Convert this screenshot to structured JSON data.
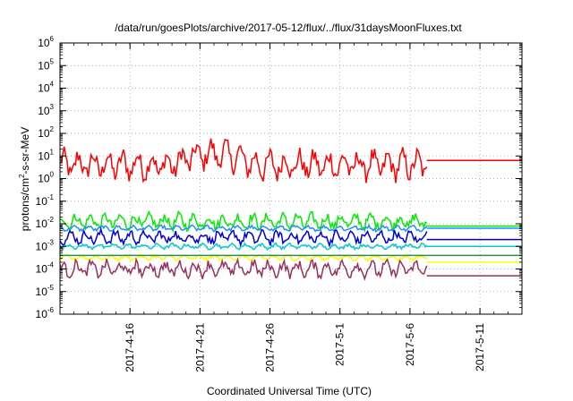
{
  "chart_data": {
    "type": "line",
    "title": "/data/run/goesPlots/archive/2017-05-12/flux/../flux/31daysMoonFluxes.txt",
    "xlabel": "Coordinated Universal Time (UTC)",
    "ylabel": "protons/cm²-s-sr-MeV",
    "ylabel_parts": {
      "base": "protons/cm",
      "sup": "2",
      "rest": "-s-sr-MeV"
    },
    "y_scale": "log",
    "ylim": [
      1e-06,
      1000000.0
    ],
    "y_ticks": [
      {
        "base": "10",
        "exp": "-6",
        "value": -6
      },
      {
        "base": "10",
        "exp": "-5",
        "value": -5
      },
      {
        "base": "10",
        "exp": "-4",
        "value": -4
      },
      {
        "base": "10",
        "exp": "-3",
        "value": -3
      },
      {
        "base": "10",
        "exp": "-2",
        "value": -2
      },
      {
        "base": "10",
        "exp": "-1",
        "value": -1
      },
      {
        "base": "10",
        "exp": "0",
        "value": 0
      },
      {
        "base": "10",
        "exp": "1",
        "value": 1
      },
      {
        "base": "10",
        "exp": "2",
        "value": 2
      },
      {
        "base": "10",
        "exp": "3",
        "value": 3
      },
      {
        "base": "10",
        "exp": "4",
        "value": 4
      },
      {
        "base": "10",
        "exp": "5",
        "value": 5
      },
      {
        "base": "10",
        "exp": "6",
        "value": 6
      }
    ],
    "xlim": [
      "2017-04-11",
      "2017-05-14"
    ],
    "x_ticks": [
      "2017-4-16",
      "2017-4-21",
      "2017-4-26",
      "2017-5-1",
      "2017-5-6",
      "2017-5-11"
    ],
    "x_tick_dates": [
      "2017-04-16",
      "2017-04-21",
      "2017-04-26",
      "2017-05-01",
      "2017-05-06",
      "2017-05-11"
    ],
    "data_end_date": "2017-05-07.2",
    "grid": true,
    "series": [
      {
        "color": "#ff0000",
        "level_log10": 0.6,
        "variation": 0.55,
        "end_value_log10": 0.8
      },
      {
        "color": "#00ee00",
        "level_log10": -1.9,
        "variation": 0.3,
        "end_value_log10": -2.1
      },
      {
        "color": "#1e8fff",
        "level_log10": -2.2,
        "variation": 0.1,
        "end_value_log10": -2.2
      },
      {
        "color": "#0000dd",
        "level_log10": -2.6,
        "variation": 0.25,
        "end_value_log10": -2.7
      },
      {
        "color": "#00cccc",
        "level_log10": -3.0,
        "variation": 0.1,
        "end_value_log10": -3.0
      },
      {
        "color": "#ffff00",
        "level_log10": -3.5,
        "variation": 0.1,
        "end_value_log10": -3.7
      },
      {
        "color": "#2e8b57",
        "level_log10": -3.4,
        "variation": 0.0,
        "end_value_log10": -3.4
      },
      {
        "color": "#983060",
        "level_log10": -4.0,
        "variation": 0.3,
        "end_value_log10": -4.3
      }
    ]
  }
}
